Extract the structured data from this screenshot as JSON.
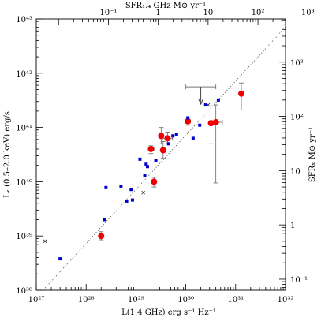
{
  "chart_data": {
    "type": "scatter",
    "xscale": "log",
    "yscale": "log",
    "xlim": [
      1e+27,
      1e+32
    ],
    "ylim": [
      1e+38,
      1e+43
    ],
    "xlabel": "L(1.4 GHz)   erg s⁻¹ Hz⁻¹",
    "ylabel_left": "Lₓ (0.5–2.0 keV)   erg/s",
    "top_axis": {
      "label": "SFR₁.₄ GHz   M⊙ yr⁻¹",
      "ticks": [
        {
          "value": 0.1,
          "label": "10⁻¹"
        },
        {
          "value": 1,
          "label": "1"
        },
        {
          "value": 10,
          "label": "10"
        },
        {
          "value": 100,
          "label": "10²"
        },
        {
          "value": 1000,
          "label": "10³"
        }
      ]
    },
    "right_axis": {
      "label": "SFRₓ   M⊙ yr⁻¹",
      "ticks": [
        {
          "value": 0.1,
          "label": "10⁻¹"
        },
        {
          "value": 1,
          "label": "1"
        },
        {
          "value": 10,
          "label": "10"
        },
        {
          "value": 100,
          "label": "10²"
        },
        {
          "value": 1000,
          "label": "10³"
        }
      ]
    },
    "x_ticks": [
      {
        "value": 1e+27,
        "label": "10²⁷"
      },
      {
        "value": 1e+28,
        "label": "10²⁸"
      },
      {
        "value": 1e+29,
        "label": "10²⁹"
      },
      {
        "value": 1e+30,
        "label": "10³⁰"
      },
      {
        "value": 1e+31,
        "label": "10³¹"
      },
      {
        "value": 1e+32,
        "label": "10³²"
      }
    ],
    "y_ticks": [
      {
        "value": 1e+38,
        "label": "10³⁸"
      },
      {
        "value": 1e+39,
        "label": "10³⁹"
      },
      {
        "value": 1e+40,
        "label": "10⁴⁰"
      },
      {
        "value": 1e+41,
        "label": "10⁴¹"
      },
      {
        "value": 1e+42,
        "label": "10⁴²"
      },
      {
        "value": 1e+43,
        "label": "10⁴³"
      }
    ],
    "reference_line": {
      "style": "dotted",
      "from": [
        1.5e+27,
        1.1e+38
      ],
      "to": [
        1e+32,
        7.1e+42
      ]
    },
    "series": [
      {
        "marker": "filled-circle",
        "color": "#ee0000",
        "points": [
          {
            "x": 2e+28,
            "y": 1e+39,
            "yerr": [
              8.5e+38,
              1.2e+39
            ]
          },
          {
            "x": 2e+29,
            "y": 4e+40,
            "yerr": [
              3.3e+40,
              4.6e+40
            ],
            "xerr": [
              1.8e+29,
              2.3e+29
            ]
          },
          {
            "x": 2.3e+29,
            "y": 1e+40,
            "yerr": [
              8e+39,
              1.2e+40
            ]
          },
          {
            "x": 3.2e+29,
            "y": 7e+40,
            "yerr": [
              5e+40,
              1e+41
            ]
          },
          {
            "x": 3.5e+29,
            "y": 3.8e+40,
            "yerr": [
              2.7e+40,
              5.5e+40
            ]
          },
          {
            "x": 4.3e+29,
            "y": 6.3e+40,
            "yerr": [
              5e+40,
              8.2e+40
            ],
            "xerr": [
              3.4e+29,
              5.4e+29
            ]
          },
          {
            "x": 1.1e+30,
            "y": 1.3e+41,
            "yerr": [
              1.1e+41,
              1.5e+41
            ]
          },
          {
            "x": 3.2e+30,
            "y": 1.2e+41,
            "yerr": [
              5e+40,
              2.5e+41
            ]
          },
          {
            "x": 4e+30,
            "y": 1.25e+41,
            "yerr": [
              9.5e+39,
              2.6e+41
            ],
            "xerr": [
              3.2e+30,
              5.4e+30
            ]
          },
          {
            "x": 1.3e+31,
            "y": 4.2e+41,
            "yerr": [
              2.1e+41,
              6.6e+41
            ]
          }
        ]
      },
      {
        "marker": "filled-square",
        "color": "#0000cc",
        "points": [
          {
            "x": 3e+27,
            "y": 3.8e+38
          },
          {
            "x": 2.3e+28,
            "y": 2e+39
          },
          {
            "x": 2.5e+28,
            "y": 7.8e+39
          },
          {
            "x": 5e+28,
            "y": 8.3e+39
          },
          {
            "x": 6.5e+28,
            "y": 4.4e+39
          },
          {
            "x": 8e+28,
            "y": 7.2e+39
          },
          {
            "x": 8.5e+28,
            "y": 4.6e+39
          },
          {
            "x": 1.2e+29,
            "y": 2.6e+40
          },
          {
            "x": 1.5e+29,
            "y": 1.3e+40
          },
          {
            "x": 1.6e+29,
            "y": 2.1e+40
          },
          {
            "x": 1.7e+29,
            "y": 1.9e+40
          },
          {
            "x": 2.5e+29,
            "y": 2.5e+40
          },
          {
            "x": 4.5e+29,
            "y": 5e+40
          },
          {
            "x": 5.5e+29,
            "y": 7e+40
          },
          {
            "x": 6.5e+29,
            "y": 7.4e+40
          },
          {
            "x": 1.1e+30,
            "y": 1.5e+41
          },
          {
            "x": 1.4e+30,
            "y": 6.3e+40
          },
          {
            "x": 1.9e+30,
            "y": 1.1e+41
          },
          {
            "x": 2.5e+30,
            "y": 2.6e+41
          },
          {
            "x": 4.5e+30,
            "y": 3.2e+41
          }
        ]
      },
      {
        "marker": "cross",
        "color": "#333333",
        "points": [
          {
            "x": 1.5e+27,
            "y": 8e+38
          },
          {
            "x": 1.4e+29,
            "y": 6.3e+39
          },
          {
            "x": 2.8e+30,
            "y": 2.6e+41
          }
        ]
      },
      {
        "marker": "upper-limit-arrow",
        "color": "#333333",
        "points": [
          {
            "x": 2e+30,
            "y": 5.6e+41,
            "xerr": [
              1e+30,
              4e+30
            ]
          }
        ]
      }
    ]
  }
}
